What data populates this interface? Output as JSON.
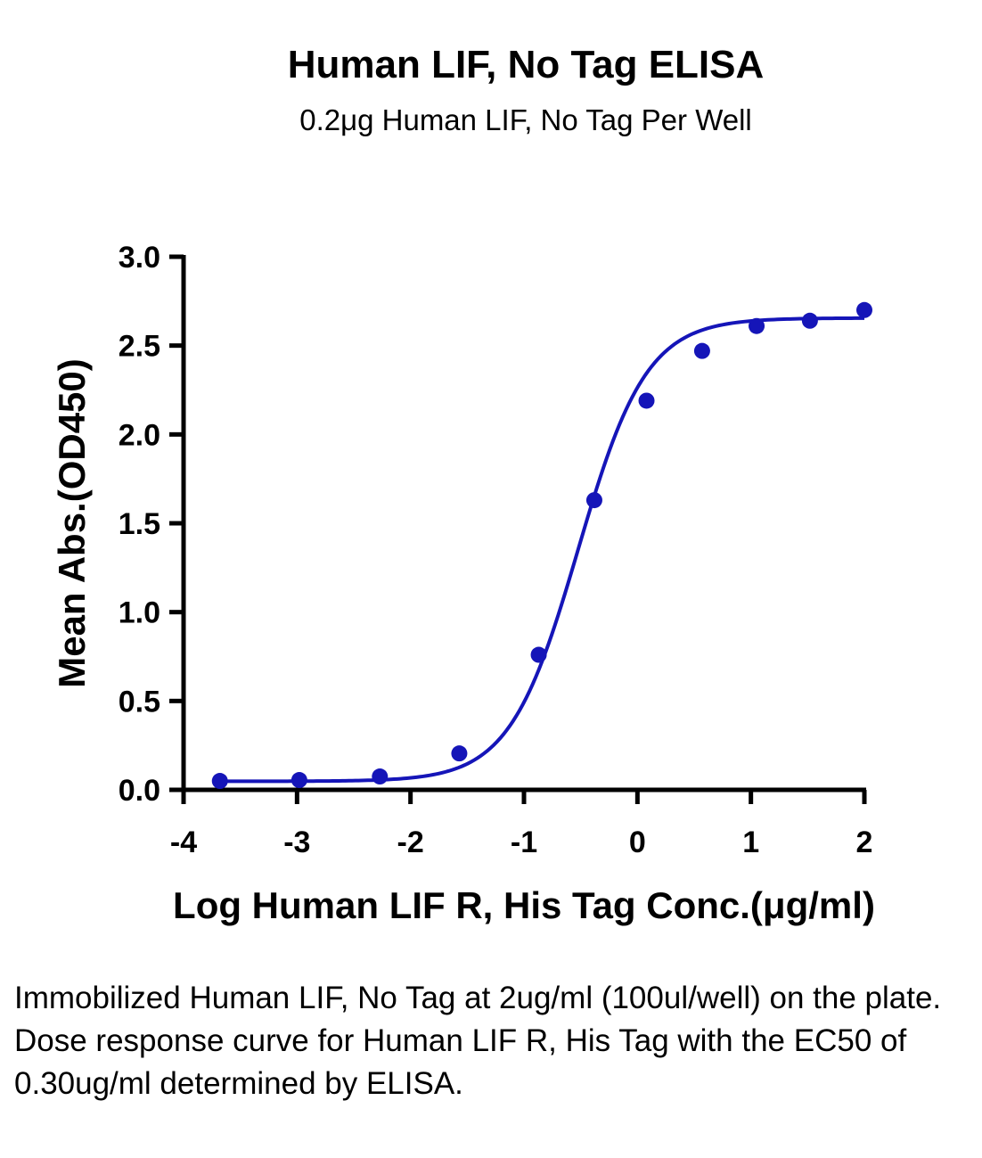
{
  "chart_data": {
    "type": "scatter",
    "title": "Human LIF, No Tag ELISA",
    "subtitle": "0.2μg Human LIF, No Tag Per Well",
    "xlabel": "Log Human LIF R, His Tag Conc.(μg/ml)",
    "ylabel": "Mean Abs.(OD450)",
    "xlim": [
      -4,
      2
    ],
    "ylim": [
      0,
      3
    ],
    "x_ticks": [
      -4,
      -3,
      -2,
      -1,
      0,
      1,
      2
    ],
    "x_tick_labels": [
      "-4",
      "-3",
      "-2",
      "-1",
      "0",
      "1",
      "2"
    ],
    "y_ticks": [
      0,
      0.5,
      1,
      1.5,
      2,
      2.5,
      3
    ],
    "y_tick_labels": [
      "0.0",
      "0.5",
      "1.0",
      "1.5",
      "2.0",
      "2.5",
      "3.0"
    ],
    "grid": false,
    "color": "#1515b8",
    "series": [
      {
        "x": [
          -3.68,
          -2.98,
          -2.27,
          -1.57,
          -0.87,
          -0.38,
          0.08,
          0.57,
          1.05,
          1.52,
          2.0
        ],
        "y": [
          0.05,
          0.055,
          0.075,
          0.205,
          0.76,
          1.63,
          2.19,
          2.47,
          2.61,
          2.64,
          2.7
        ]
      }
    ],
    "fit": {
      "model": "4PL",
      "bottom": 0.048,
      "top": 2.655,
      "log_ec50": -0.523,
      "hill_slope": 1.44
    }
  },
  "caption": "Immobilized Human LIF, No Tag at 2ug/ml (100ul/well) on the plate. Dose response curve for Human LIF R, His Tag with the EC50 of 0.30ug/ml determined by ELISA."
}
